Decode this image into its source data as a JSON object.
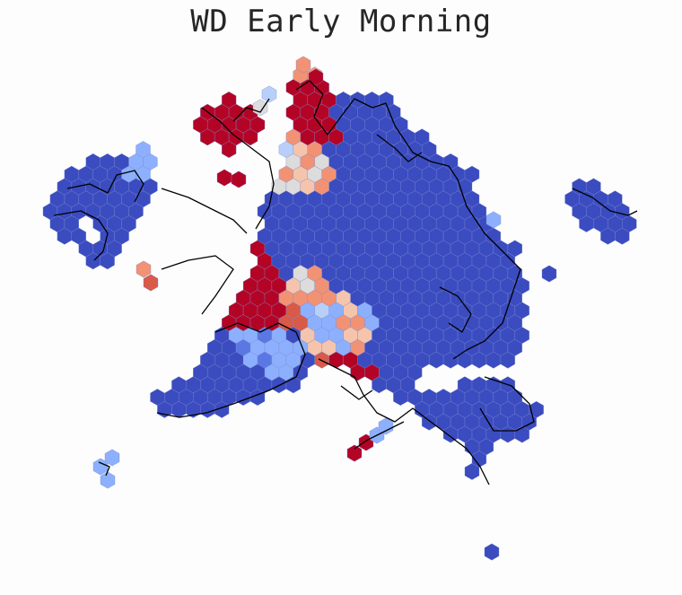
{
  "title": "WD Early Morning",
  "colors": {
    "background": "#fdfdfd",
    "title": "#262626",
    "outline": "#000000",
    "hex_edge": "#7a86cc",
    "scale": {
      "dark_blue": "#3b4cc0",
      "blue": "#5a78e4",
      "light_blue": "#8db0fe",
      "pale_blue": "#b8d0f9",
      "neutral": "#dddcdc",
      "pale_red": "#f5c4ac",
      "salmon": "#f29274",
      "red": "#d85a48",
      "dark_red": "#b40426"
    }
  },
  "map": {
    "kind": "hexbin",
    "colormap": "coolwarm"
  }
}
